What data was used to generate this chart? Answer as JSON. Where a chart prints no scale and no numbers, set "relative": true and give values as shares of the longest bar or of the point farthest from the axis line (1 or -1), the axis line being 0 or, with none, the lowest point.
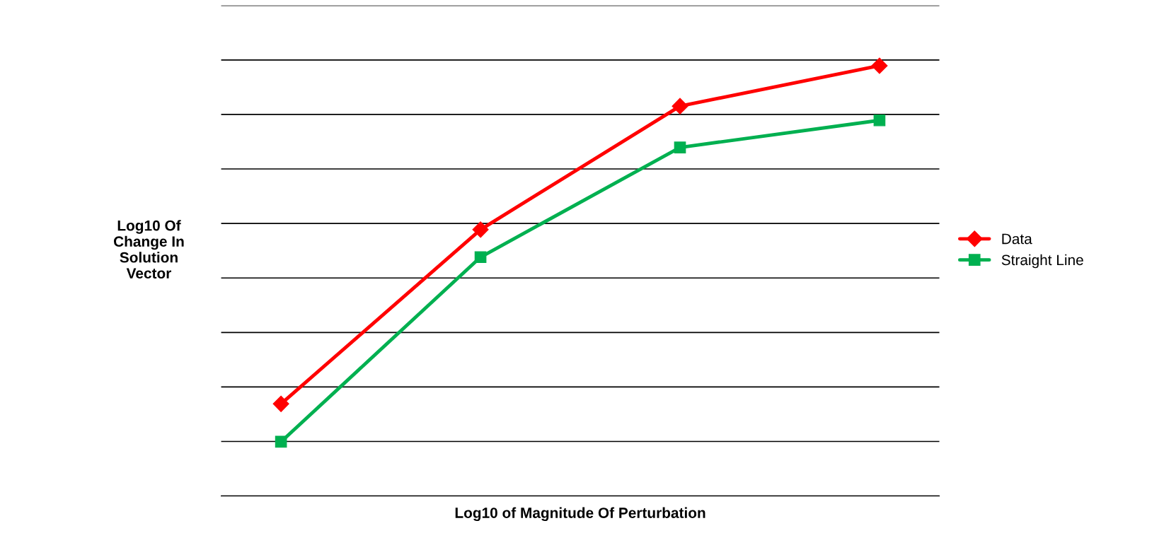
{
  "chart_data": {
    "type": "line",
    "relative": true,
    "xlabel": "Log10 of Magnitude Of Perturbation",
    "ylabel": "Log10 Of\nChange In\nSolution\nVector",
    "categories": [
      null,
      null,
      null,
      null
    ],
    "series": [
      {
        "name": "Data",
        "color": "#ff0000",
        "marker": "diamond",
        "values": [
          0.214,
          0.619,
          0.906,
          1.0
        ]
      },
      {
        "name": "Straight Line",
        "color": "#00b050",
        "marker": "square",
        "values": [
          0.126,
          0.555,
          0.81,
          0.873
        ]
      }
    ],
    "grid": "y",
    "legend": "right",
    "line_style": "solid"
  }
}
